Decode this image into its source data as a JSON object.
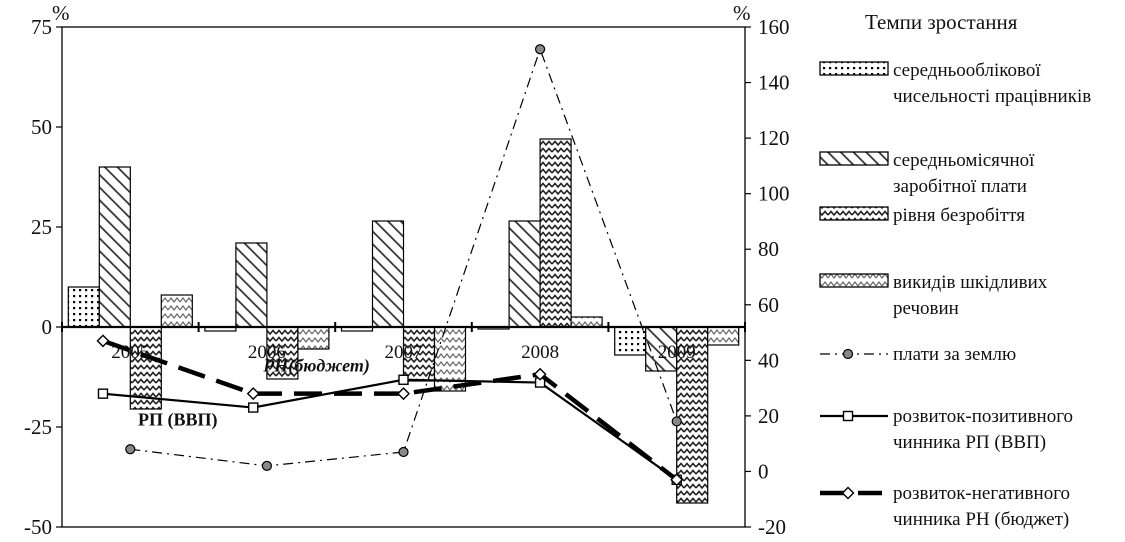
{
  "chart_data": {
    "type": "bar",
    "categories": [
      "2005",
      "2006",
      "2007",
      "2008",
      "2009"
    ],
    "y_left": {
      "unit_label": "%",
      "ylim": [
        -50,
        75
      ],
      "ticks": [
        -50,
        -25,
        0,
        25,
        50,
        75
      ]
    },
    "y_right": {
      "unit_label": "%",
      "ylim": [
        -20,
        160
      ],
      "ticks": [
        -20,
        0,
        20,
        40,
        60,
        80,
        100,
        120,
        140,
        160
      ]
    },
    "legend": {
      "title": "Темпи зростання",
      "placement": "right"
    },
    "bar_series": [
      {
        "name_lines": [
          "середньооблікової",
          "чисельності працівників"
        ],
        "pattern": "dots",
        "axis": "left",
        "values": [
          10,
          -1,
          -1,
          -0.5,
          -7
        ]
      },
      {
        "name_lines": [
          "середньомісячної",
          "заробітної плати"
        ],
        "pattern": "diag",
        "axis": "left",
        "values": [
          40,
          21,
          26.5,
          26.5,
          -11
        ]
      },
      {
        "name_lines": [
          "рівня безробіття"
        ],
        "pattern": "zigzag-dense",
        "axis": "left",
        "values": [
          -20.5,
          -13,
          -13.5,
          47,
          -44
        ]
      },
      {
        "name_lines": [
          "викидів шкідливих",
          "речовин"
        ],
        "pattern": "zigzag-light",
        "axis": "left",
        "values": [
          8,
          -5.5,
          -16,
          2.5,
          -4.5
        ]
      }
    ],
    "line_series": [
      {
        "name_lines": [
          "плати за землю"
        ],
        "style": "dashdot",
        "marker": "circle",
        "axis": "right",
        "values": [
          8,
          2,
          7,
          152,
          18
        ]
      },
      {
        "name_lines": [
          "розвиток-позитивного",
          "чинника РП (ВВП)"
        ],
        "style": "solid",
        "marker": "square",
        "axis": "right",
        "x_offsets": [
          -0.2,
          -0.1,
          0,
          0,
          0
        ],
        "values": [
          28,
          23,
          33,
          32,
          -3
        ]
      },
      {
        "name_lines": [
          "розвиток-негативного",
          "чинника РН (бюджет)"
        ],
        "style": "dash",
        "marker": "diamond",
        "axis": "right",
        "x_offsets": [
          -0.2,
          -0.1,
          0,
          0,
          0
        ],
        "values": [
          47,
          28,
          28,
          35,
          -3
        ]
      }
    ],
    "annotations": [
      {
        "text": "РП (ВВП)",
        "near_series": "розвиток-позитивного"
      },
      {
        "text": "РН(бюджет)",
        "near_series": "розвиток-негативного",
        "italic": true
      }
    ]
  }
}
